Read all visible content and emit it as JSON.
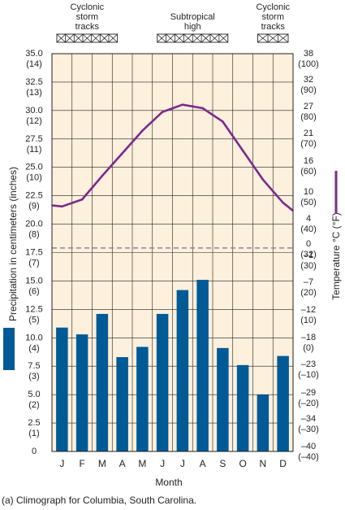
{
  "chart_data": {
    "type": "bar",
    "caption": "(a) Climograph for Columbia, South Carolina.",
    "xlabel": "Month",
    "ylabel_left": "Precipitation in centimeters (inches)",
    "ylabel_right": "Temperature °C (°F)",
    "categories": [
      "J",
      "F",
      "M",
      "A",
      "M",
      "J",
      "J",
      "A",
      "S",
      "O",
      "N",
      "D"
    ],
    "ylim_precip_cm": [
      0,
      35
    ],
    "left_ticks": [
      {
        "cm": "35.0",
        "in": "(14)"
      },
      {
        "cm": "32.5",
        "in": "(13)"
      },
      {
        "cm": "30.0",
        "in": "(12)"
      },
      {
        "cm": "27.5",
        "in": "(11)"
      },
      {
        "cm": "25.0",
        "in": "(10)"
      },
      {
        "cm": "22.5",
        "in": "(9)"
      },
      {
        "cm": "20.0",
        "in": "(8)"
      },
      {
        "cm": "17.5",
        "in": "(7)"
      },
      {
        "cm": "15.0",
        "in": "(6)"
      },
      {
        "cm": "12.5",
        "in": "(5)"
      },
      {
        "cm": "10.0",
        "in": "(4)"
      },
      {
        "cm": "7.5",
        "in": "(3)"
      },
      {
        "cm": "5.0",
        "in": "(2)"
      },
      {
        "cm": "2.5",
        "in": "(1)"
      },
      {
        "cm": "0",
        "in": ""
      }
    ],
    "right_ticks": [
      {
        "c": "38",
        "f": "(100)"
      },
      {
        "c": "32",
        "f": "(90)"
      },
      {
        "c": "27",
        "f": "(80)"
      },
      {
        "c": "21",
        "f": "(70)"
      },
      {
        "c": "16",
        "f": "(60)"
      },
      {
        "c": "10",
        "f": "(50)"
      },
      {
        "c": "4",
        "f": "(40)"
      },
      {
        "c": "0",
        "f": "(32)"
      },
      {
        "c": "–1",
        "f": "(30)"
      },
      {
        "c": "–7",
        "f": "(20)"
      },
      {
        "c": "–12",
        "f": "(10)"
      },
      {
        "c": "–18",
        "f": "(0)"
      },
      {
        "c": "–23",
        "f": "(–10)"
      },
      {
        "c": "–29",
        "f": "(–20)"
      },
      {
        "c": "–34",
        "f": "(–30)"
      },
      {
        "c": "–40",
        "f": "(–40)"
      }
    ],
    "freezing_line_cm": 17.9,
    "series": [
      {
        "kind": "bar",
        "color": "#005a96",
        "values": [
          10.9,
          10.3,
          12.1,
          8.3,
          9.2,
          12.1,
          14.2,
          15.1,
          9.1,
          7.6,
          5.0,
          8.4
        ]
      },
      {
        "kind": "line",
        "unit": "°F",
        "color": "#7b2a8e",
        "values": [
          44.6,
          47.2,
          55.2,
          62.8,
          71.0,
          78.0,
          80.7,
          79.4,
          74.4,
          63.8,
          54.0,
          46.0
        ],
        "edge_start": 45.0,
        "edge_end": 43.0
      }
    ],
    "bands": [
      {
        "label": [
          "Cyclonic",
          "storm",
          "tracks"
        ],
        "from_month": 0,
        "to_month": 3.5
      },
      {
        "label": [
          "Subtropical",
          "high"
        ],
        "from_month": 5,
        "to_month": 9
      },
      {
        "label": [
          "Cyclonic",
          "storm",
          "tracks"
        ],
        "from_month": 10,
        "to_month": 12
      }
    ]
  }
}
